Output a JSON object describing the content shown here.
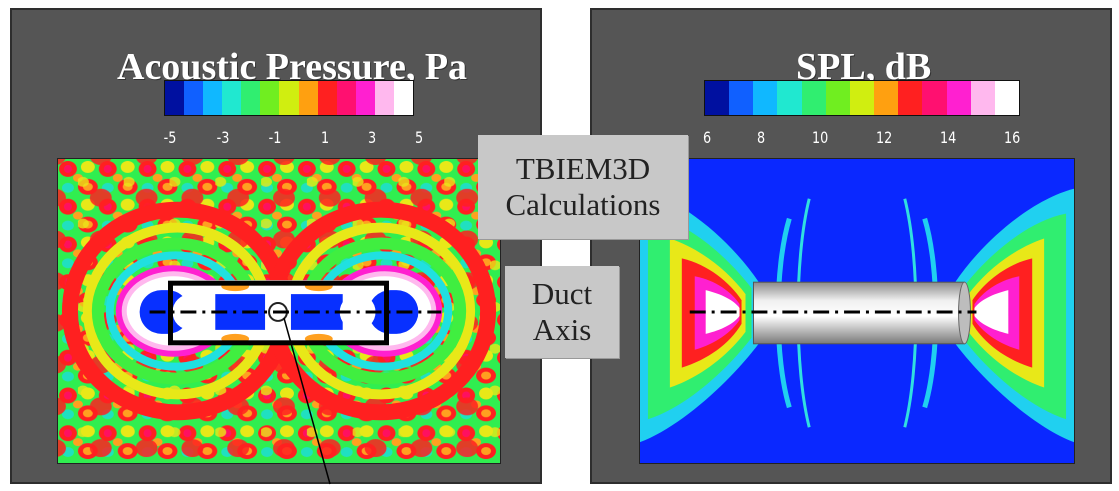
{
  "left_panel": {
    "title": "Acoustic Pressure, Pa",
    "colorbar_colors": [
      "#0010a0",
      "#1060ff",
      "#10b8ff",
      "#20e8d0",
      "#30ee70",
      "#70ee20",
      "#d0ee10",
      "#ffa010",
      "#ff2020",
      "#ff1070",
      "#ff20d0",
      "#ffb8ee",
      "#ffffff"
    ],
    "colorbar_ticks": [
      "-5",
      "-3",
      "-1",
      "1",
      "3",
      "5"
    ]
  },
  "right_panel": {
    "title": "SPL, dB",
    "colorbar_colors": [
      "#0010a0",
      "#1060ff",
      "#10b8ff",
      "#20e8d0",
      "#30ee70",
      "#70ee20",
      "#d0ee10",
      "#ffa010",
      "#ff2020",
      "#ff1070",
      "#ff20d0",
      "#ffb8ee",
      "#ffffff"
    ],
    "colorbar_ticks": [
      "6",
      "8",
      "10",
      "12",
      "14",
      "16"
    ]
  },
  "center_labels": {
    "calc_line1": "TBIEM3D",
    "calc_line2": "Calculations",
    "axis_line1": "Duct",
    "axis_line2": "Axis"
  },
  "colors": {
    "panel_background": "#555555",
    "pressure_blue": "#0830ff",
    "spl_blue": "#0a28ff",
    "red": "#ff2020",
    "green": "#40ee40",
    "yellow": "#e8e818",
    "orange": "#ffa020",
    "cyan": "#20e0e0",
    "white": "#ffffff"
  }
}
